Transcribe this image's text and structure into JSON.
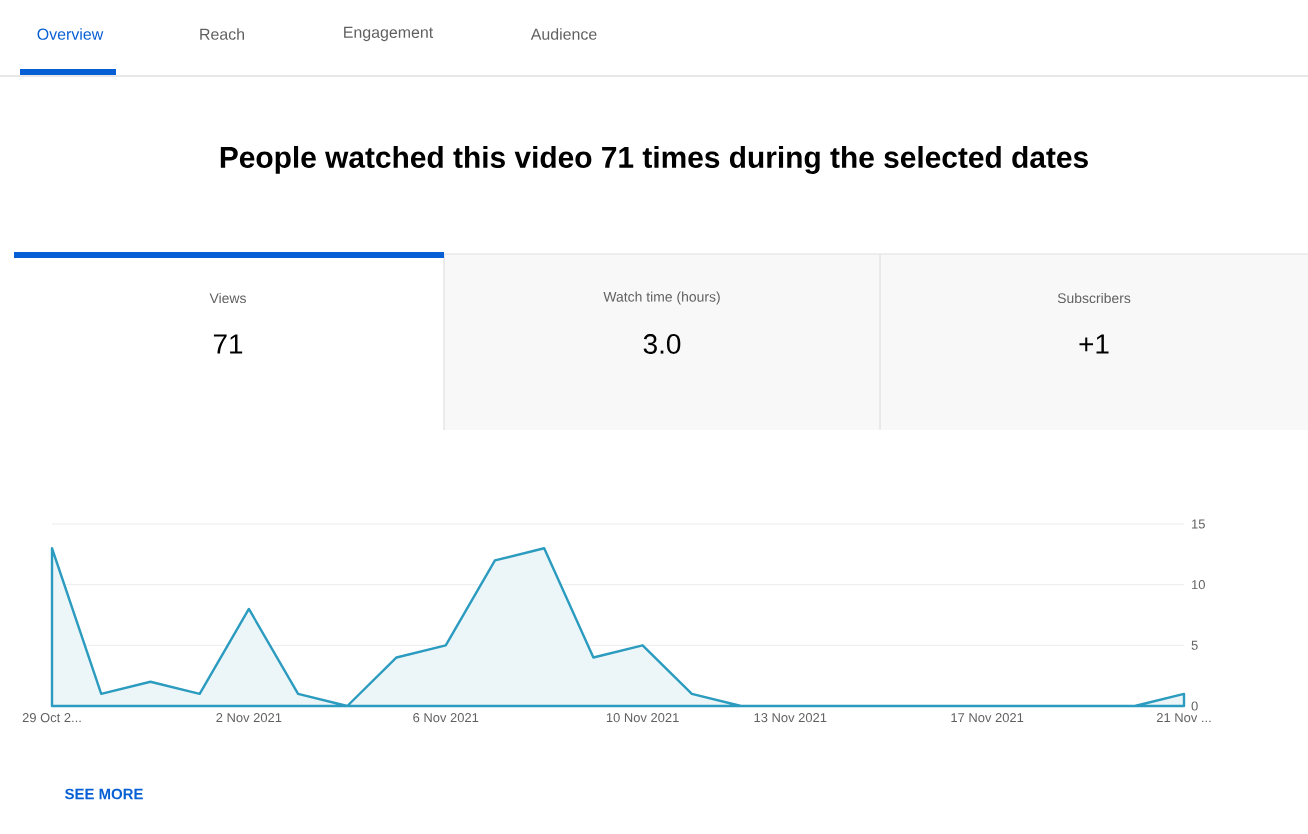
{
  "chart_data": {
    "type": "area",
    "title": "People watched this video 71 times during the selected dates",
    "categories": [
      "29 Oct 2...",
      null,
      null,
      null,
      "2 Nov 2021",
      null,
      null,
      null,
      "6 Nov 2021",
      null,
      null,
      null,
      "10 Nov 2021",
      null,
      null,
      "13 Nov 2021",
      null,
      null,
      null,
      "17 Nov 2021",
      null,
      null,
      null,
      "21 Nov ..."
    ],
    "series": [
      {
        "color": "#2b9bbf",
        "values": [
          13,
          1,
          2,
          1,
          8,
          1,
          0,
          4,
          5,
          12,
          13,
          4,
          5,
          1,
          0,
          0,
          0,
          0,
          0,
          0,
          0,
          0,
          0,
          1
        ]
      }
    ],
    "ylim": [
      0,
      15
    ],
    "yticks": [
      0,
      5,
      10,
      15
    ],
    "grid": "y",
    "annotations": [
      "Overview",
      "Reach",
      "Engagement",
      "Audience",
      "Views",
      "71",
      "Watch time (hours)",
      "3.0",
      "Subscribers",
      "+1",
      "SEE MORE"
    ]
  }
}
